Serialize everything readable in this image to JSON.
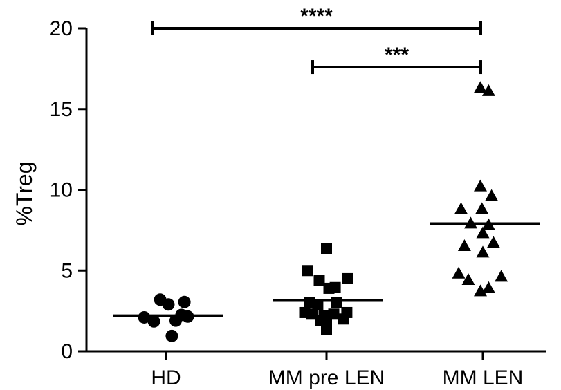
{
  "chart_data": {
    "type": "scatter",
    "ylabel": "%Treg",
    "xlabel": "",
    "ylim": [
      0,
      20
    ],
    "yticks": [
      "0",
      "5",
      "10",
      "15",
      "20"
    ],
    "categories": [
      "HD",
      "MM pre LEN",
      "MM LEN"
    ],
    "series": [
      {
        "category": "HD",
        "marker": "circle",
        "points": [
          [
            -0.45,
            2.1
          ],
          [
            -0.25,
            1.85
          ],
          [
            -0.12,
            3.2
          ],
          [
            0.05,
            2.9
          ],
          [
            0.2,
            1.9
          ],
          [
            0.32,
            2.25
          ],
          [
            0.45,
            2.15
          ],
          [
            0.38,
            3.05
          ],
          [
            0.12,
            0.95
          ]
        ],
        "mean": 2.2
      },
      {
        "category": "MM pre LEN",
        "marker": "square",
        "points": [
          [
            -0.45,
            2.4
          ],
          [
            -0.35,
            3.0
          ],
          [
            -0.3,
            2.3
          ],
          [
            -0.4,
            5.0
          ],
          [
            -0.15,
            4.4
          ],
          [
            -0.18,
            2.9
          ],
          [
            -0.05,
            2.2
          ],
          [
            0.0,
            1.8
          ],
          [
            0.05,
            3.9
          ],
          [
            0.0,
            6.35
          ],
          [
            0.15,
            2.3
          ],
          [
            0.2,
            3.0
          ],
          [
            0.18,
            3.95
          ],
          [
            0.35,
            2.0
          ],
          [
            0.42,
            2.4
          ],
          [
            0.43,
            4.5
          ],
          [
            0.0,
            1.35
          ],
          [
            -0.12,
            1.9
          ]
        ],
        "mean": 3.15
      },
      {
        "category": "MM LEN",
        "marker": "triangle",
        "points": [
          [
            -0.45,
            8.8
          ],
          [
            -0.25,
            7.9
          ],
          [
            -0.38,
            6.5
          ],
          [
            -0.5,
            4.8
          ],
          [
            -0.3,
            4.4
          ],
          [
            -0.05,
            10.2
          ],
          [
            -0.02,
            8.8
          ],
          [
            0.0,
            7.3
          ],
          [
            0.12,
            7.8
          ],
          [
            0.18,
            9.6
          ],
          [
            0.22,
            6.7
          ],
          [
            0.0,
            6.1
          ],
          [
            -0.05,
            3.7
          ],
          [
            0.12,
            3.9
          ],
          [
            0.38,
            4.6
          ],
          [
            -0.05,
            16.3
          ],
          [
            0.12,
            16.1
          ]
        ],
        "mean": 7.9
      }
    ],
    "significance": [
      {
        "from": "HD",
        "to": "MM LEN",
        "y": 20,
        "label": "****"
      },
      {
        "from": "MM pre LEN",
        "to": "MM LEN",
        "y": 17.6,
        "label": "***"
      }
    ]
  }
}
